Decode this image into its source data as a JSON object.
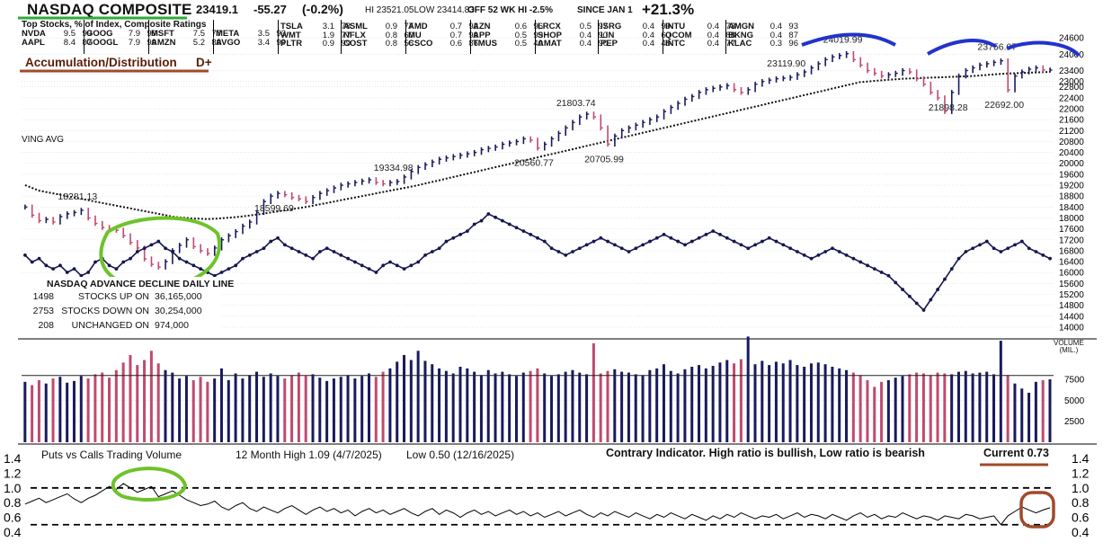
{
  "header": {
    "title": "NASDAQ COMPOSITE",
    "price": "23419.1",
    "change": "-55.27",
    "change_pct": "(-0.2%)",
    "hilo": "HI 23521.05LOW 23414.83",
    "off_high": "OFF 52 WK HI -2.5%",
    "since_label": "SINCE JAN 1",
    "since_value": "+21.3%"
  },
  "top_stocks": {
    "heading": "Top Stocks, % of Index, Composite Ratings",
    "columns": [
      [
        [
          "NVDA",
          "9.5",
          "99"
        ],
        [
          "AAPL",
          "8.4",
          "87"
        ]
      ],
      [
        [
          "GOOG",
          "7.9",
          "99"
        ],
        [
          "GOOGL",
          "7.9",
          "99"
        ]
      ],
      [
        [
          "MSFT",
          "7.5",
          "77"
        ],
        [
          "AMZN",
          "5.2",
          "89"
        ]
      ],
      [
        [
          "META",
          "3.5",
          "93"
        ],
        [
          "AVGO",
          "3.4",
          "99"
        ]
      ],
      [
        [
          "TSLA",
          "3.1",
          "78"
        ],
        [
          "WMT",
          "1.9",
          "77"
        ],
        [
          "PLTR",
          "0.9",
          "99"
        ]
      ],
      [
        [
          "ASML",
          "0.9",
          "77"
        ],
        [
          "NFLX",
          "0.8",
          "60"
        ],
        [
          "COST",
          "0.8",
          "56"
        ]
      ],
      [
        [
          "AMD",
          "0.7",
          "92"
        ],
        [
          "MU",
          "0.7",
          "99"
        ],
        [
          "CSCO",
          "0.6",
          "86"
        ]
      ],
      [
        [
          "AZN",
          "0.6",
          "96"
        ],
        [
          "APP",
          "0.5",
          "99"
        ],
        [
          "TMUS",
          "0.5",
          "40"
        ]
      ],
      [
        [
          "LRCX",
          "0.5",
          "97"
        ],
        [
          "SHOP",
          "0.4",
          "90"
        ],
        [
          "AMAT",
          "0.4",
          "90"
        ]
      ],
      [
        [
          "ISRG",
          "0.4",
          "99"
        ],
        [
          "LIN",
          "0.4",
          "60"
        ],
        [
          "PEP",
          "0.4",
          "48"
        ]
      ],
      [
        [
          "INTU",
          "0.4",
          "73"
        ],
        [
          "QCOM",
          "0.4",
          "88"
        ],
        [
          "INTC",
          "0.4",
          "77"
        ]
      ],
      [
        [
          "AMGN",
          "0.4",
          "93"
        ],
        [
          "BKNG",
          "0.4",
          "87"
        ],
        [
          "KLAC",
          "0.3",
          "96"
        ]
      ]
    ]
  },
  "acc_dist": {
    "label": "Accumulation/Distribution",
    "grade": "D+"
  },
  "price_annotations": [
    {
      "text": "18281.13",
      "anchor": "p8"
    },
    {
      "text": "18599.69",
      "anchor": "p36"
    },
    {
      "text": "19334.98",
      "anchor": "p53"
    },
    {
      "text": "20560.77",
      "anchor": "p73"
    },
    {
      "text": "21803.74",
      "anchor": "p79"
    },
    {
      "text": "20705.99",
      "anchor": "p83"
    },
    {
      "text": "23119.90",
      "anchor": "p109"
    },
    {
      "text": "24019.99",
      "anchor": "p117"
    },
    {
      "text": "21898.28",
      "anchor": "p132"
    },
    {
      "text": "23756.07",
      "anchor": "p139"
    },
    {
      "text": "22692.00",
      "anchor": "p140"
    }
  ],
  "ma_label": "VING AVG",
  "advance_decline": {
    "title": "NASDAQ ADVANCE DECLINE DAILY LINE",
    "rows": [
      {
        "count": "1498",
        "label": "STOCKS UP ON",
        "volume": "36,165,000"
      },
      {
        "count": "2753",
        "label": "STOCKS DOWN ON",
        "volume": "30,254,000"
      },
      {
        "count": "208",
        "label": "UNCHANGED ON",
        "volume": "974,000"
      }
    ]
  },
  "volume_label": [
    "VOLUME",
    "(MIL.)"
  ],
  "puts_calls": {
    "title": "Puts vs Calls Trading Volume",
    "high": "12 Month High 1.09 (4/7/2025)",
    "low": "Low 0.50 (12/16/2025)",
    "note": "Contrary Indicator. High ratio is bullish, Low ratio is bearish",
    "current": "Current 0.73"
  },
  "colors": {
    "up_bar": "#1a1a5e",
    "down_bar": "#c04a6e",
    "ad_line": "#161650",
    "ma_line": "#111111",
    "green_markup": "#6fc22b",
    "blue_markup": "#2233cc",
    "brown_markup": "#a04a2a",
    "title_underline": "#2faa3a"
  },
  "chart_data": [
    {
      "type": "candlestick",
      "name": "price",
      "y_ticks": [
        14000,
        14400,
        14800,
        15200,
        15600,
        16000,
        16400,
        16800,
        17200,
        17600,
        18000,
        18400,
        18800,
        19200,
        19600,
        20000,
        20400,
        20800,
        21200,
        21600,
        22000,
        22400,
        22800,
        23000,
        23400,
        24000,
        24600
      ],
      "ylim": [
        13800,
        24800
      ],
      "close": [
        18400,
        18100,
        17900,
        17950,
        17850,
        18050,
        18150,
        18200,
        18281,
        18000,
        17800,
        17650,
        17600,
        17550,
        17350,
        17100,
        16900,
        16500,
        16300,
        16200,
        16400,
        16800,
        17000,
        17200,
        16950,
        16800,
        16700,
        16900,
        17200,
        17350,
        17500,
        17700,
        17850,
        18200,
        18600,
        18800,
        18900,
        18850,
        18750,
        18700,
        18600,
        18750,
        18900,
        19000,
        19100,
        19200,
        19250,
        19300,
        19350,
        19400,
        19300,
        19250,
        19300,
        19335,
        19500,
        19700,
        19850,
        19950,
        20050,
        20150,
        20200,
        20250,
        20300,
        20350,
        20400,
        20500,
        20550,
        20600,
        20700,
        20750,
        20800,
        20900,
        20850,
        20561,
        20700,
        20900,
        21100,
        21300,
        21500,
        21700,
        21804,
        21700,
        21300,
        20706,
        21000,
        21200,
        21300,
        21400,
        21500,
        21600,
        21700,
        21900,
        22050,
        22200,
        22350,
        22450,
        22600,
        22700,
        22750,
        22800,
        22850,
        22700,
        22600,
        22700,
        22900,
        23000,
        23050,
        23100,
        23120,
        23150,
        23250,
        23350,
        23500,
        23650,
        23800,
        23900,
        23950,
        24020,
        23800,
        23600,
        23400,
        23300,
        23200,
        23250,
        23300,
        23400,
        23350,
        23100,
        22900,
        22600,
        22400,
        21898,
        22600,
        23200,
        23400,
        23500,
        23600,
        23650,
        23700,
        23756,
        22692,
        23200,
        23350,
        23450,
        23500,
        23420,
        23420
      ],
      "moving_average": [
        19200,
        19100,
        19000,
        18950,
        18900,
        18850,
        18800,
        18750,
        18700,
        18650,
        18600,
        18550,
        18500,
        18450,
        18400,
        18350,
        18300,
        18250,
        18200,
        18150,
        18100,
        18050,
        18020,
        18000,
        17980,
        17970,
        17960,
        17970,
        17990,
        18010,
        18030,
        18060,
        18090,
        18120,
        18160,
        18200,
        18240,
        18280,
        18320,
        18360,
        18400,
        18450,
        18500,
        18550,
        18600,
        18650,
        18700,
        18750,
        18800,
        18850,
        18900,
        18950,
        19000,
        19050,
        19100,
        19150,
        19200,
        19260,
        19320,
        19380,
        19440,
        19500,
        19560,
        19620,
        19680,
        19740,
        19800,
        19860,
        19920,
        19980,
        20040,
        20100,
        20160,
        20220,
        20280,
        20340,
        20400,
        20460,
        20520,
        20580,
        20640,
        20700,
        20760,
        20820,
        20880,
        20940,
        21000,
        21060,
        21120,
        21180,
        21240,
        21300,
        21360,
        21420,
        21480,
        21540,
        21600,
        21660,
        21720,
        21780,
        21840,
        21900,
        21960,
        22020,
        22080,
        22140,
        22200,
        22260,
        22320,
        22380,
        22440,
        22500,
        22560,
        22620,
        22680,
        22740,
        22800,
        22860,
        22920,
        22980,
        23000,
        23020,
        23040,
        23060,
        23080,
        23100,
        23110,
        23120,
        23130,
        23140,
        23150,
        23160,
        23170,
        23180,
        23190,
        23200,
        23220,
        23240,
        23260,
        23280,
        23290,
        23300,
        23310,
        23320,
        23330,
        23340,
        23350
      ]
    },
    {
      "type": "line",
      "name": "advance-decline line",
      "values": [
        56,
        54,
        55,
        53,
        52,
        53,
        51,
        52,
        50,
        51,
        54,
        55,
        53,
        52,
        54,
        55,
        57,
        58,
        59,
        60,
        58,
        57,
        55,
        54,
        53,
        52,
        51,
        50,
        51,
        52,
        53,
        55,
        56,
        57,
        58,
        60,
        61,
        59,
        58,
        57,
        56,
        55,
        57,
        58,
        57,
        56,
        55,
        54,
        53,
        52,
        51,
        53,
        54,
        53,
        52,
        53,
        54,
        56,
        57,
        58,
        60,
        61,
        62,
        63,
        65,
        66,
        68,
        67,
        66,
        65,
        64,
        63,
        62,
        61,
        60,
        58,
        57,
        56,
        57,
        58,
        59,
        60,
        61,
        60,
        59,
        58,
        57,
        58,
        59,
        60,
        61,
        62,
        61,
        60,
        59,
        60,
        61,
        62,
        63,
        62,
        61,
        60,
        59,
        58,
        59,
        60,
        61,
        60,
        59,
        58,
        57,
        56,
        55,
        56,
        57,
        58,
        57,
        56,
        55,
        54,
        53,
        52,
        51,
        50,
        48,
        46,
        44,
        42,
        40,
        43,
        46,
        49,
        52,
        55,
        57,
        58,
        59,
        60,
        58,
        57,
        58,
        59,
        60,
        58,
        57,
        56,
        55
      ]
    },
    {
      "type": "bar",
      "name": "volume",
      "y_ticks": [
        2500,
        5000,
        7500
      ],
      "ylim": [
        0,
        12000
      ],
      "values": [
        7200,
        6800,
        7400,
        7000,
        7600,
        7800,
        7100,
        7300,
        7900,
        7600,
        8100,
        8300,
        7700,
        8600,
        9500,
        10400,
        9200,
        9800,
        10900,
        9400,
        8600,
        8300,
        7600,
        7900,
        7400,
        7800,
        7200,
        7600,
        8800,
        7400,
        8200,
        7600,
        8000,
        8400,
        7800,
        8200,
        7900,
        7600,
        8000,
        8300,
        7900,
        8100,
        7700,
        7300,
        7600,
        7800,
        8000,
        7600,
        7900,
        8200,
        7800,
        8400,
        8800,
        9600,
        10400,
        9800,
        10900,
        9700,
        9300,
        8800,
        8500,
        8200,
        9000,
        8800,
        8400,
        8000,
        8600,
        8200,
        8400,
        8100,
        7900,
        8300,
        8500,
        8800,
        8200,
        7900,
        8100,
        8400,
        8600,
        8300,
        8100,
        11800,
        8200,
        8500,
        8700,
        8400,
        8300,
        8100,
        8000,
        8600,
        8800,
        9300,
        8500,
        8200,
        8700,
        9000,
        9200,
        8800,
        9100,
        9500,
        9800,
        9400,
        9900,
        12600,
        9300,
        9700,
        9200,
        9600,
        9400,
        9800,
        9200,
        9000,
        9400,
        9500,
        9300,
        9000,
        8800,
        8600,
        8300,
        8000,
        7400,
        6600,
        7200,
        7400,
        7700,
        7900,
        8100,
        8300,
        8200,
        8000,
        8300,
        8200,
        8100,
        8400,
        8500,
        8200,
        8300,
        8400,
        8100,
        12100,
        8000,
        7000,
        6400,
        5900,
        7200,
        7400,
        7500
      ],
      "moving_average_level": 7950
    },
    {
      "type": "line",
      "name": "puts vs calls ratio",
      "y_ticks": [
        0.4,
        0.6,
        0.8,
        1.0,
        1.2,
        1.4
      ],
      "ylim": [
        0.35,
        1.45
      ],
      "reference_lines": [
        1.0,
        0.5
      ],
      "values": [
        0.78,
        0.82,
        0.86,
        0.8,
        0.84,
        0.88,
        0.92,
        0.85,
        0.8,
        0.86,
        0.9,
        0.96,
        1.02,
        0.98,
        1.06,
        1.0,
        0.94,
        0.98,
        1.02,
        0.88,
        0.92,
        0.96,
        0.9,
        0.84,
        0.8,
        0.76,
        0.78,
        0.82,
        0.74,
        0.7,
        0.76,
        0.8,
        0.72,
        0.68,
        0.74,
        0.7,
        0.66,
        0.72,
        0.76,
        0.7,
        0.64,
        0.7,
        0.74,
        0.68,
        0.72,
        0.66,
        0.7,
        0.62,
        0.68,
        0.72,
        0.66,
        0.7,
        0.64,
        0.68,
        0.72,
        0.66,
        0.62,
        0.68,
        0.72,
        0.64,
        0.7,
        0.66,
        0.6,
        0.66,
        0.7,
        0.64,
        0.68,
        0.62,
        0.66,
        0.7,
        0.64,
        0.68,
        0.62,
        0.66,
        0.6,
        0.64,
        0.68,
        0.62,
        0.66,
        0.7,
        0.64,
        0.6,
        0.66,
        0.62,
        0.68,
        0.64,
        0.6,
        0.66,
        0.62,
        0.58,
        0.64,
        0.6,
        0.66,
        0.62,
        0.58,
        0.64,
        0.6,
        0.56,
        0.62,
        0.58,
        0.64,
        0.6,
        0.66,
        0.62,
        0.58,
        0.62,
        0.6,
        0.64,
        0.58,
        0.62,
        0.66,
        0.6,
        0.64,
        0.62,
        0.58,
        0.64,
        0.6,
        0.56,
        0.62,
        0.66,
        0.6,
        0.64,
        0.58,
        0.62,
        0.6,
        0.66,
        0.62,
        0.58,
        0.62,
        0.6,
        0.56,
        0.62,
        0.6,
        0.58,
        0.64,
        0.62,
        0.58,
        0.6,
        0.62,
        0.5,
        0.62,
        0.68,
        0.74,
        0.7,
        0.66,
        0.7,
        0.73
      ]
    }
  ]
}
